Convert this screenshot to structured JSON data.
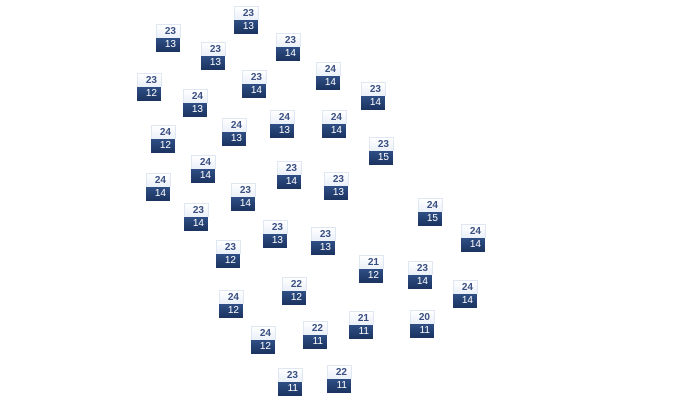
{
  "colors": {
    "high_text": "#3a4f80",
    "low_background": "#1f3a6a",
    "low_text": "#ffffff"
  },
  "markers": [
    {
      "high": "23",
      "low": "13"
    },
    {
      "high": "23",
      "low": "13"
    },
    {
      "high": "23",
      "low": "13"
    },
    {
      "high": "23",
      "low": "14"
    },
    {
      "high": "24",
      "low": "14"
    },
    {
      "high": "23",
      "low": "12"
    },
    {
      "high": "23",
      "low": "14"
    },
    {
      "high": "23",
      "low": "14"
    },
    {
      "high": "24",
      "low": "13"
    },
    {
      "high": "24",
      "low": "13"
    },
    {
      "high": "24",
      "low": "13"
    },
    {
      "high": "24",
      "low": "14"
    },
    {
      "high": "24",
      "low": "12"
    },
    {
      "high": "23",
      "low": "15"
    },
    {
      "high": "24",
      "low": "14"
    },
    {
      "high": "23",
      "low": "14"
    },
    {
      "high": "23",
      "low": "13"
    },
    {
      "high": "24",
      "low": "14"
    },
    {
      "high": "23",
      "low": "14"
    },
    {
      "high": "24",
      "low": "15"
    },
    {
      "high": "23",
      "low": "14"
    },
    {
      "high": "23",
      "low": "13"
    },
    {
      "high": "24",
      "low": "14"
    },
    {
      "high": "23",
      "low": "13"
    },
    {
      "high": "23",
      "low": "12"
    },
    {
      "high": "21",
      "low": "12"
    },
    {
      "high": "23",
      "low": "14"
    },
    {
      "high": "24",
      "low": "14"
    },
    {
      "high": "22",
      "low": "12"
    },
    {
      "high": "24",
      "low": "12"
    },
    {
      "high": "21",
      "low": "11"
    },
    {
      "high": "20",
      "low": "11"
    },
    {
      "high": "22",
      "low": "11"
    },
    {
      "high": "24",
      "low": "12"
    },
    {
      "high": "23",
      "low": "11"
    },
    {
      "high": "22",
      "low": "11"
    }
  ]
}
